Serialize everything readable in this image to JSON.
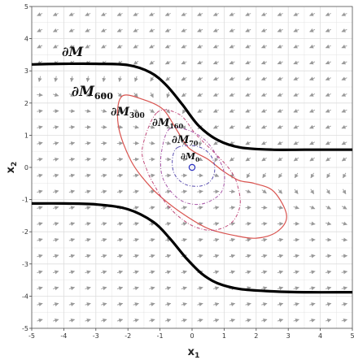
{
  "chart_data": {
    "type": "line",
    "title": "",
    "xlabel": "x",
    "xlabel_sub": "1",
    "ylabel": "x",
    "ylabel_sub": "2",
    "xlim": [
      -5,
      5
    ],
    "ylim": [
      -5,
      5
    ],
    "xticks": [
      "-5",
      "-4",
      "-3",
      "-2",
      "-1",
      "0",
      "1",
      "2",
      "3",
      "4",
      "5"
    ],
    "yticks": [
      "-5",
      "-4",
      "-3",
      "-2",
      "-1",
      "0",
      "1",
      "2",
      "3",
      "4",
      "5"
    ],
    "grid": true,
    "vector_field": true,
    "colors": {
      "boundary": "#000000",
      "m600": "#d9534f",
      "m300": "#c04a7a",
      "m160": "#a855a8",
      "m70": "#5b4fb0",
      "m0": "#2a2fc0",
      "arrow": "#9a9a9a",
      "grid": "#dddddd"
    },
    "series": [
      {
        "name": "∂M",
        "style": "solid",
        "x": [
          -5,
          -4,
          -3,
          -2,
          -1.3,
          -0.8,
          -0.3,
          0.2,
          0.8,
          1.5,
          2.5,
          3.5,
          5
        ],
        "y": [
          3.2,
          3.22,
          3.22,
          3.18,
          2.95,
          2.55,
          1.95,
          1.3,
          0.85,
          0.62,
          0.55,
          0.55,
          0.55
        ]
      },
      {
        "name": "",
        "style": "solid",
        "x": [
          -5,
          -4,
          -3,
          -2,
          -1.2,
          -0.7,
          -0.2,
          0.3,
          0.8,
          1.5,
          2.5,
          3.5,
          5
        ],
        "y": [
          -1.12,
          -1.12,
          -1.15,
          -1.3,
          -1.7,
          -2.2,
          -2.8,
          -3.3,
          -3.6,
          -3.78,
          -3.85,
          -3.88,
          -3.88
        ]
      },
      {
        "name": "∂M",
        "sub": "600",
        "style": "solid",
        "x": [
          -2.2,
          -1.5,
          -0.9,
          -0.5,
          -0.1,
          0.5,
          0.95,
          1.45,
          1.95,
          2.55,
          2.95,
          2.65,
          2.0,
          1.25,
          0.5,
          -0.2,
          -0.75,
          -1.3,
          -1.9,
          -2.3,
          -2.2
        ],
        "y": [
          2.2,
          2.1,
          1.8,
          1.2,
          0.6,
          0.25,
          -0.1,
          -0.4,
          -0.5,
          -0.75,
          -1.5,
          -2.0,
          -2.2,
          -2.1,
          -1.9,
          -1.5,
          -1.1,
          -0.6,
          0.2,
          1.3,
          2.2
        ]
      },
      {
        "name": "∂M",
        "sub": "300",
        "style": "dashdot",
        "x": [
          -1.1,
          -0.4,
          0.1,
          0.5,
          0.9,
          1.2,
          1.4,
          1.5,
          1.25,
          0.7,
          0.1,
          -0.45,
          -0.9,
          -1.15,
          -1.4,
          -1.55,
          -1.1
        ],
        "y": [
          1.7,
          1.65,
          1.05,
          0.65,
          0.25,
          -0.1,
          -0.5,
          -1.15,
          -1.7,
          -1.95,
          -1.85,
          -1.5,
          -1.0,
          -0.6,
          -0.1,
          0.6,
          1.7
        ]
      },
      {
        "name": "∂M",
        "sub": "160",
        "style": "dashdot",
        "x": [
          -0.7,
          -0.1,
          0.4,
          0.75,
          1.0,
          0.95,
          0.65,
          0.2,
          -0.3,
          -0.7,
          -0.95,
          -0.95,
          -0.7
        ],
        "y": [
          1.2,
          1.15,
          0.85,
          0.4,
          -0.15,
          -0.7,
          -1.0,
          -1.15,
          -1.05,
          -0.7,
          -0.2,
          0.5,
          1.2
        ]
      },
      {
        "name": "∂M",
        "sub": "70",
        "style": "dashdot",
        "x": [
          -0.45,
          0.0,
          0.4,
          0.65,
          0.7,
          0.55,
          0.25,
          -0.15,
          -0.45,
          -0.6,
          -0.6,
          -0.45
        ],
        "y": [
          0.62,
          0.68,
          0.55,
          0.25,
          -0.15,
          -0.45,
          -0.58,
          -0.55,
          -0.35,
          -0.05,
          0.35,
          0.62
        ]
      },
      {
        "name": "∂M",
        "sub": "0",
        "style": "circle",
        "x": [
          0
        ],
        "y": [
          0
        ]
      }
    ]
  }
}
